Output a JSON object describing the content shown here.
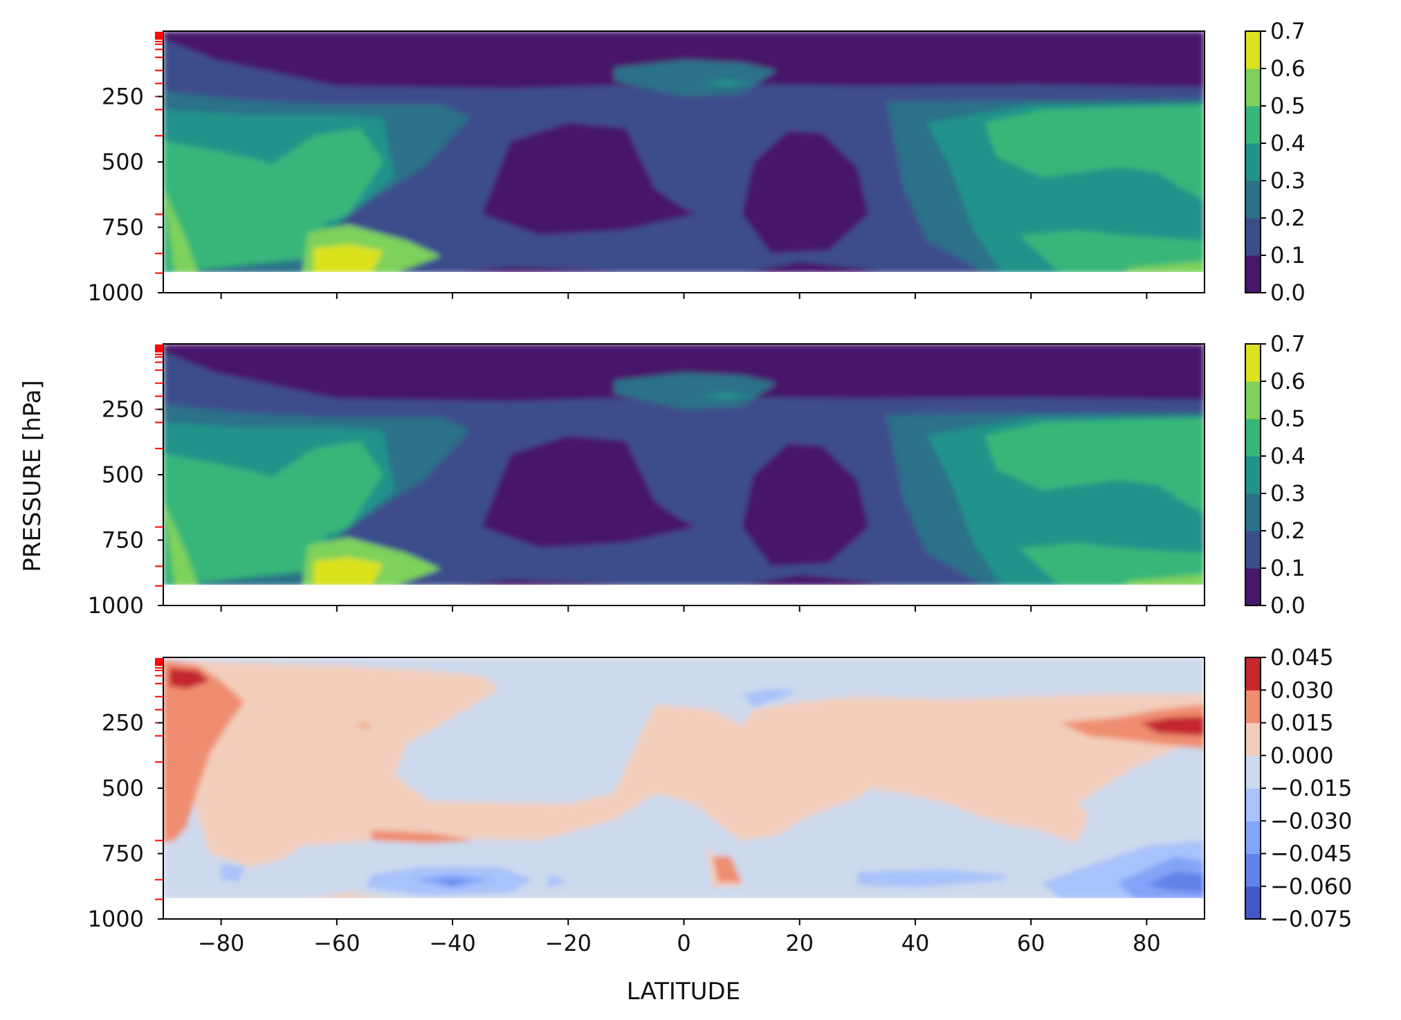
{
  "figure": {
    "xlabel": "LATITUDE",
    "ylabel": "PRESSURE [hPa]"
  },
  "chart_data": [
    {
      "type": "heatmap",
      "panel": "top",
      "xlim": [
        -90,
        90
      ],
      "ylim": [
        1000,
        0
      ],
      "x_ticks": [
        -80,
        -60,
        -40,
        -20,
        0,
        20,
        40,
        60,
        80
      ],
      "y_ticks": [
        250,
        500,
        750,
        1000
      ],
      "y_tick_labels": [
        "250",
        "500",
        "750",
        "1000"
      ],
      "data_bottom_hPa": 925,
      "red_level_ticks_hPa": [
        5,
        10,
        15,
        20,
        25,
        30,
        40,
        50,
        70,
        100,
        150,
        200,
        250,
        300,
        400,
        700,
        850,
        925
      ],
      "colorbar": {
        "levels": [
          0.0,
          0.1,
          0.2,
          0.3,
          0.4,
          0.5,
          0.6,
          0.7
        ],
        "labels": [
          "0.0",
          "0.1",
          "0.2",
          "0.3",
          "0.4",
          "0.5",
          "0.6",
          "0.7"
        ],
        "colors": [
          "#46176a",
          "#3c4d8c",
          "#2a7189",
          "#22938a",
          "#37b679",
          "#7ed15a",
          "#dbe21f"
        ]
      },
      "grid": false
    },
    {
      "type": "heatmap",
      "panel": "middle",
      "xlim": [
        -90,
        90
      ],
      "ylim": [
        1000,
        0
      ],
      "x_ticks": [
        -80,
        -60,
        -40,
        -20,
        0,
        20,
        40,
        60,
        80
      ],
      "y_ticks": [
        250,
        500,
        750,
        1000
      ],
      "y_tick_labels": [
        "250",
        "500",
        "750",
        "1000"
      ],
      "data_bottom_hPa": 925,
      "red_level_ticks_hPa": [
        5,
        10,
        15,
        20,
        25,
        30,
        40,
        50,
        70,
        100,
        150,
        200,
        250,
        300,
        400,
        700,
        850,
        925
      ],
      "colorbar": {
        "levels": [
          0.0,
          0.1,
          0.2,
          0.3,
          0.4,
          0.5,
          0.6,
          0.7
        ],
        "labels": [
          "0.0",
          "0.1",
          "0.2",
          "0.3",
          "0.4",
          "0.5",
          "0.6",
          "0.7"
        ],
        "colors": [
          "#46176a",
          "#3c4d8c",
          "#2a7189",
          "#22938a",
          "#37b679",
          "#7ed15a",
          "#dbe21f"
        ]
      },
      "grid": false
    },
    {
      "type": "heatmap",
      "panel": "bottom",
      "xlim": [
        -90,
        90
      ],
      "ylim": [
        1000,
        0
      ],
      "x_ticks": [
        -80,
        -60,
        -40,
        -20,
        0,
        20,
        40,
        60,
        80
      ],
      "x_tick_labels": [
        "−80",
        "−60",
        "−40",
        "−20",
        "0",
        "20",
        "40",
        "60",
        "80"
      ],
      "y_ticks": [
        250,
        500,
        750,
        1000
      ],
      "y_tick_labels": [
        "250",
        "500",
        "750",
        "1000"
      ],
      "data_bottom_hPa": 925,
      "red_level_ticks_hPa": [
        5,
        10,
        15,
        20,
        25,
        30,
        40,
        50,
        70,
        100,
        150,
        200,
        250,
        300,
        400,
        700,
        850,
        925
      ],
      "colorbar": {
        "levels": [
          -0.075,
          -0.06,
          -0.045,
          -0.03,
          -0.015,
          0.0,
          0.015,
          0.03,
          0.045
        ],
        "labels": [
          "−0.075",
          "−0.060",
          "−0.045",
          "−0.030",
          "−0.015",
          "0.000",
          "0.015",
          "0.030",
          "0.045"
        ],
        "colors": [
          "#4358cb",
          "#6281e9",
          "#83a4f8",
          "#a8c2fb",
          "#cdd9ec",
          "#f2cdbb",
          "#ef8d6f",
          "#c5282f"
        ]
      },
      "grid": false
    }
  ]
}
